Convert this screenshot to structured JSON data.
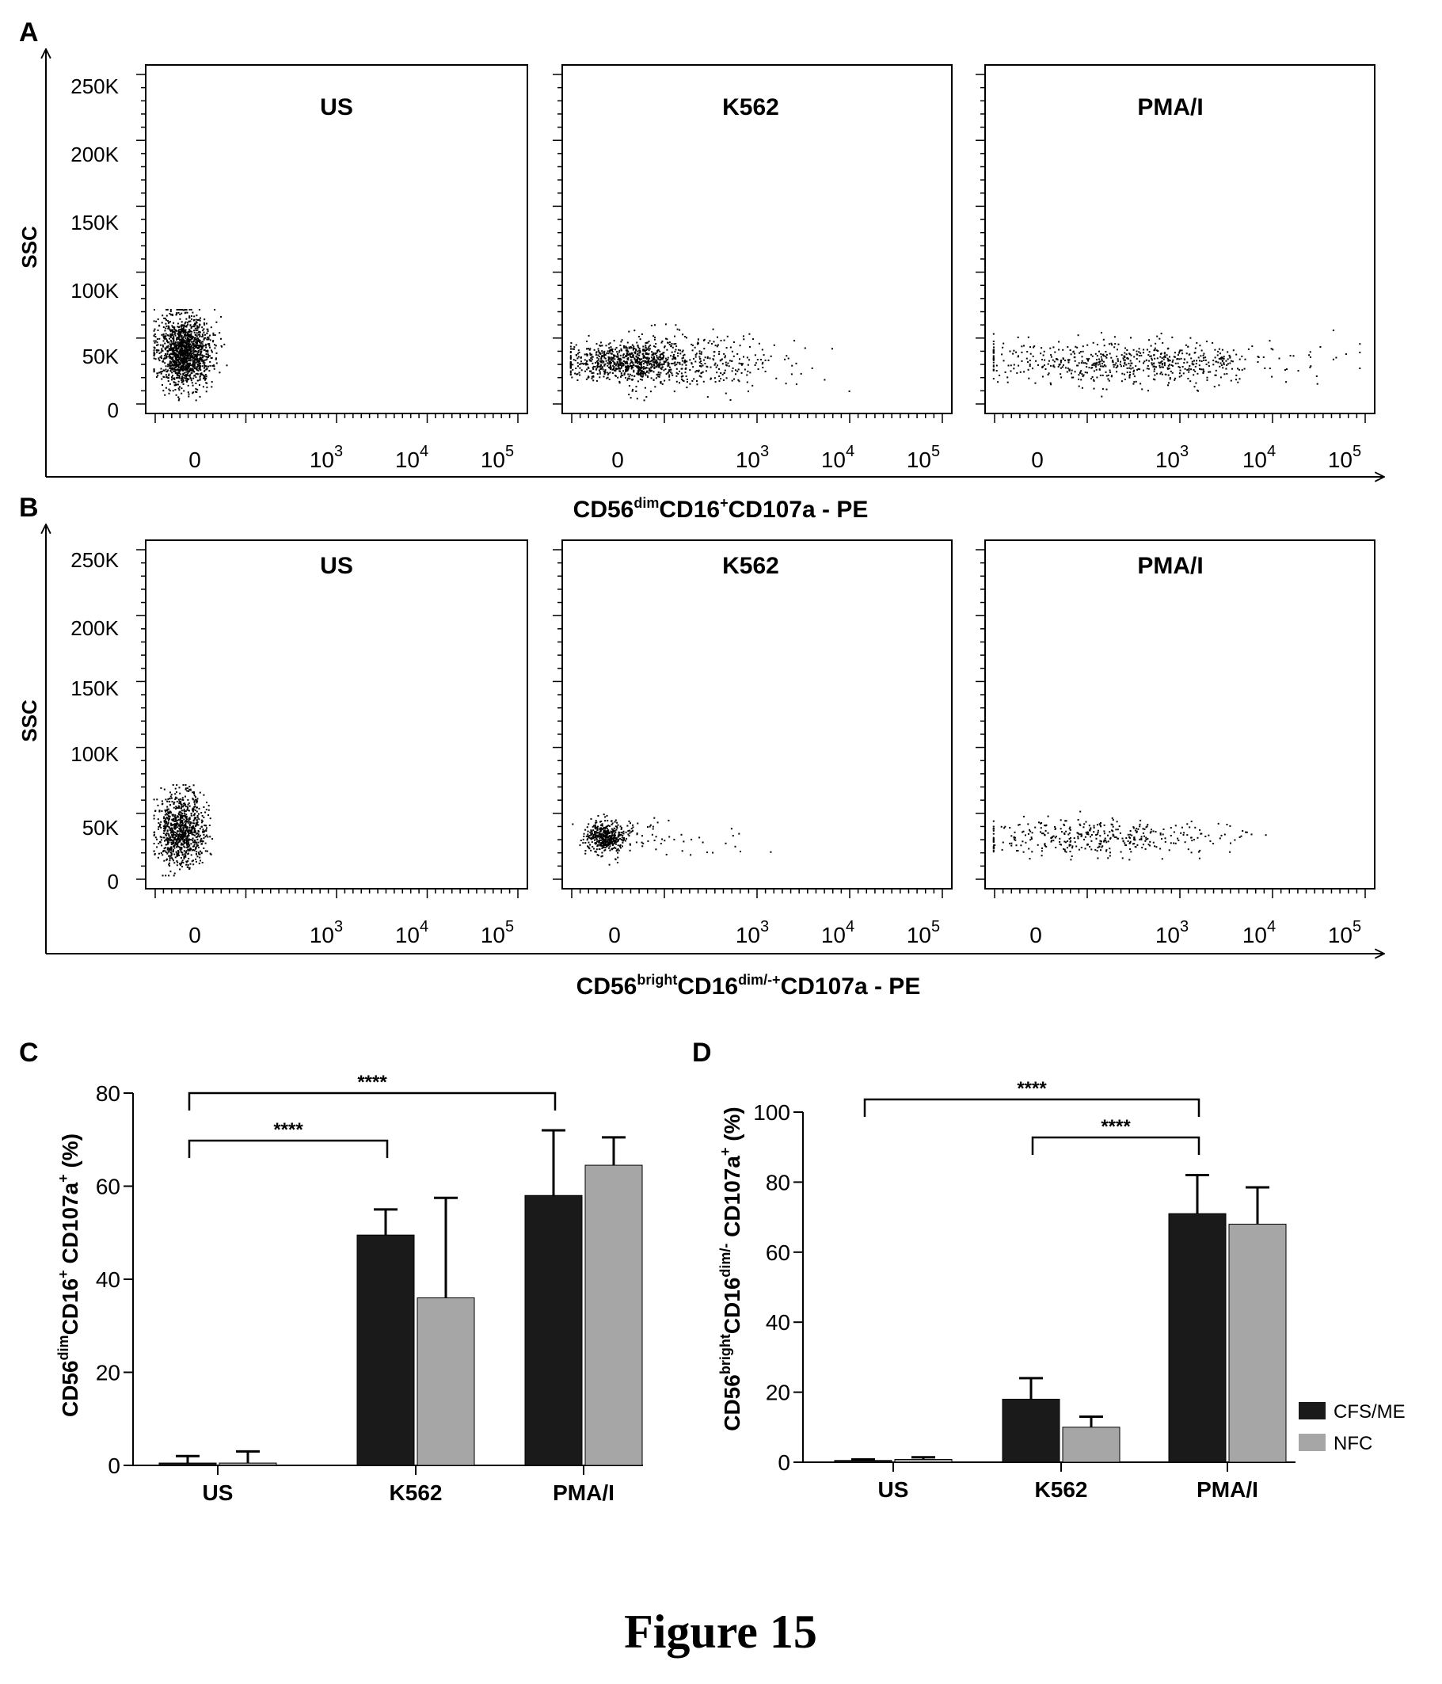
{
  "figure_caption": "Figure 15",
  "panels": {
    "A": {
      "letter": "A",
      "y_axis_label": "SSC",
      "y_ticks": [
        "0",
        "50K",
        "100K",
        "150K",
        "200K",
        "250K"
      ],
      "x_ticks": [
        {
          "base": "0",
          "exp": ""
        },
        {
          "base": "10",
          "exp": "3"
        },
        {
          "base": "10",
          "exp": "4"
        },
        {
          "base": "10",
          "exp": "5"
        }
      ],
      "x_axis_label": {
        "a": "CD56",
        "a_sup": "dim",
        "b": "CD16",
        "b_sup": "+",
        "c": "CD107a  -  PE"
      },
      "plots": [
        {
          "title": "US"
        },
        {
          "title": "K562"
        },
        {
          "title": "PMA/I"
        }
      ]
    },
    "B": {
      "letter": "B",
      "y_axis_label": "SSC",
      "y_ticks": [
        "0",
        "50K",
        "100K",
        "150K",
        "200K",
        "250K"
      ],
      "x_ticks": [
        {
          "base": "0",
          "exp": ""
        },
        {
          "base": "10",
          "exp": "3"
        },
        {
          "base": "10",
          "exp": "4"
        },
        {
          "base": "10",
          "exp": "5"
        }
      ],
      "x_axis_label": {
        "a": "CD56",
        "a_sup": "bright",
        "b": "CD16",
        "b_sup": "dim/-+",
        "c": "CD107a  -  PE"
      },
      "plots": [
        {
          "title": "US"
        },
        {
          "title": "K562"
        },
        {
          "title": "PMA/I"
        }
      ]
    },
    "C": {
      "letter": "C",
      "y_label": {
        "a": "CD56",
        "a_sup": "dim",
        "b": "CD16",
        "b_sup": "+",
        "c": " CD107a",
        "c_sup": "+",
        "d": " (%)"
      },
      "significance": [
        {
          "text": "****",
          "from": "US",
          "to": "K562"
        },
        {
          "text": "****",
          "from": "US",
          "to": "PMA/I"
        }
      ]
    },
    "D": {
      "letter": "D",
      "y_label": {
        "a": "CD56",
        "a_sup": "bright",
        "b": "CD16",
        "b_sup": "dim/-",
        "c": " CD107a",
        "c_sup": "+",
        "d": " (%)"
      },
      "significance": [
        {
          "text": "****",
          "from": "US",
          "to": "PMA/I"
        },
        {
          "text": "****",
          "from": "K562",
          "to": "PMA/I"
        }
      ]
    }
  },
  "colors": {
    "cfs_me": "#1a1a1a",
    "nfc": "#a6a6a6",
    "axis": "#000000"
  },
  "chart_data": [
    {
      "panel": "C",
      "type": "bar",
      "categories": [
        "US",
        "K562",
        "PMA/I"
      ],
      "series": [
        {
          "name": "CFS/ME",
          "values": [
            0.5,
            49.5,
            58
          ],
          "errors": [
            1.5,
            5.5,
            14
          ]
        },
        {
          "name": "NFC",
          "values": [
            0.5,
            36,
            64.5
          ],
          "errors": [
            2.5,
            21.5,
            6
          ]
        }
      ],
      "ylim": [
        0,
        80
      ],
      "yticks": [
        0,
        20,
        40,
        60,
        80
      ]
    },
    {
      "panel": "D",
      "type": "bar",
      "categories": [
        "US",
        "K562",
        "PMA/I"
      ],
      "series": [
        {
          "name": "CFS/ME",
          "values": [
            0.5,
            18,
            71
          ],
          "errors": [
            0.3,
            6,
            11
          ]
        },
        {
          "name": "NFC",
          "values": [
            0.8,
            10,
            68
          ],
          "errors": [
            0.6,
            3,
            10.5
          ]
        }
      ],
      "ylim": [
        0,
        100
      ],
      "yticks": [
        0,
        20,
        40,
        60,
        80,
        100
      ],
      "legend_position": "bottom-right"
    }
  ]
}
